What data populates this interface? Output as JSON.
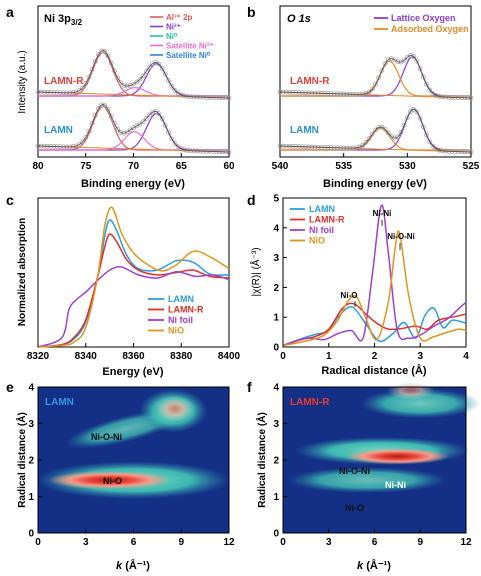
{
  "panels": {
    "a": {
      "letter": "a",
      "title_main": "Ni 3p",
      "title_sub": "3/2",
      "xlabel": "Binding energy (eV)",
      "ylabel": "Intensity (a.u.)",
      "xticks": [
        "80",
        "75",
        "70",
        "65",
        "60"
      ],
      "legend": [
        {
          "label": "Al³⁺ 2p",
          "color": "#e5595a"
        },
        {
          "label": "Ni²⁺",
          "color": "#8a3cd6"
        },
        {
          "label": "Ni⁰",
          "color": "#29c2a4"
        },
        {
          "label": "Satellite Ni²⁺",
          "color": "#e86fcf"
        },
        {
          "label": "Satellite Ni⁰",
          "color": "#2f86d8"
        }
      ],
      "samples": [
        {
          "label": "LAMN-R",
          "color": "#e0413b"
        },
        {
          "label": "LAMN",
          "color": "#2a8fd6"
        }
      ]
    },
    "b": {
      "letter": "b",
      "title": "O 1s",
      "xlabel": "Binding energy (eV)",
      "xticks": [
        "540",
        "535",
        "530",
        "525"
      ],
      "legend": [
        {
          "label": "Lattice Oxygen",
          "color": "#8a3cd6"
        },
        {
          "label": "Adsorbed Oxygen",
          "color": "#e58a2a"
        }
      ],
      "samples": [
        {
          "label": "LAMN-R",
          "color": "#e0413b"
        },
        {
          "label": "LAMN",
          "color": "#2a8fd6"
        }
      ]
    },
    "c": {
      "letter": "c",
      "xlabel": "Energy (eV)",
      "ylabel": "Normalized absorption",
      "xticks": [
        "8320",
        "8340",
        "8360",
        "8380",
        "8400"
      ],
      "legend": [
        {
          "label": "LAMN",
          "color": "#2a9ee0"
        },
        {
          "label": "LAMN-R",
          "color": "#e0302a"
        },
        {
          "label": "Ni foil",
          "color": "#a040d0"
        },
        {
          "label": "NiO",
          "color": "#e0961e"
        }
      ]
    },
    "d": {
      "letter": "d",
      "xlabel": "Radical distance (Å)",
      "ylabel": "|χ(R)| (Å⁻³)",
      "xticks": [
        "0",
        "1",
        "2",
        "3",
        "4"
      ],
      "yticks": [
        "0",
        "1",
        "2",
        "3",
        "4",
        "5"
      ],
      "legend": [
        {
          "label": "LAMN",
          "color": "#2a9ee0"
        },
        {
          "label": "LAMN-R",
          "color": "#e0302a"
        },
        {
          "label": "Ni foil",
          "color": "#a040d0"
        },
        {
          "label": "NiO",
          "color": "#e0961e"
        }
      ],
      "annotations": [
        "Ni-Ni",
        "Ni-O-Ni",
        "Ni-O"
      ]
    },
    "e": {
      "letter": "e",
      "sample": "LAMN",
      "xlabel_k": "k",
      "xlabel_unit": " (Å⁻¹)",
      "ylabel": "Radical distance (Å)",
      "xticks": [
        "0",
        "3",
        "6",
        "9",
        "12"
      ],
      "yticks": [
        "0",
        "1",
        "2",
        "3",
        "4"
      ],
      "annotations": [
        "Ni-O-Ni",
        "Ni-O"
      ]
    },
    "f": {
      "letter": "f",
      "sample": "LAMN-R",
      "xlabel_k": "k",
      "xlabel_unit": " (Å⁻¹)",
      "ylabel": "Radical distance (Å)",
      "xticks": [
        "0",
        "3",
        "6",
        "9",
        "12"
      ],
      "yticks": [
        "0",
        "1",
        "2",
        "3",
        "4"
      ],
      "annotations": [
        "Ni-O-Ni",
        "Ni-Ni",
        "Ni-O"
      ]
    }
  },
  "chart_data": [
    {
      "panel": "a",
      "type": "line",
      "xlim": [
        80,
        60
      ],
      "x_reversed": true,
      "series": [
        {
          "name": "LAMN-R",
          "peaks": [
            {
              "component": "Al³⁺ 2p",
              "center": 73.2,
              "height": 0.62
            },
            {
              "component": "Ni²⁺",
              "center": 67.6,
              "height": 0.46
            },
            {
              "component": "Satellite Ni²⁺",
              "center": 69.8,
              "height": 0.12
            }
          ]
        },
        {
          "name": "LAMN",
          "peaks": [
            {
              "component": "Al³⁺ 2p",
              "center": 73.2,
              "height": 0.62
            },
            {
              "component": "Ni²⁺",
              "center": 67.6,
              "height": 0.52
            },
            {
              "component": "Satellite Ni²⁺",
              "center": 69.9,
              "height": 0.26
            }
          ]
        }
      ]
    },
    {
      "panel": "b",
      "type": "line",
      "xlim": [
        540,
        525
      ],
      "x_reversed": true,
      "series": [
        {
          "name": "LAMN-R",
          "peaks": [
            {
              "component": "Lattice Oxygen",
              "center": 529.6,
              "height": 0.65
            },
            {
              "component": "Adsorbed Oxygen",
              "center": 531.4,
              "height": 0.58
            }
          ]
        },
        {
          "name": "LAMN",
          "peaks": [
            {
              "component": "Lattice Oxygen",
              "center": 529.5,
              "height": 0.68
            },
            {
              "component": "Adsorbed Oxygen",
              "center": 532.1,
              "height": 0.37
            }
          ]
        }
      ]
    },
    {
      "panel": "c",
      "type": "line",
      "xlim": [
        8320,
        8400
      ],
      "ylim": [
        0,
        1.9
      ],
      "series": [
        {
          "name": "LAMN",
          "x": [
            8320,
            8330,
            8335,
            8340,
            8345,
            8348,
            8350,
            8353,
            8357,
            8362,
            8370,
            8378,
            8385,
            8392,
            8400
          ],
          "y": [
            0.0,
            0.03,
            0.1,
            0.32,
            0.9,
            1.42,
            1.62,
            1.48,
            1.18,
            1.0,
            0.98,
            1.1,
            1.08,
            0.93,
            0.92
          ]
        },
        {
          "name": "LAMN-R",
          "x": [
            8320,
            8330,
            8335,
            8340,
            8345,
            8348,
            8350,
            8353,
            8357,
            8362,
            8370,
            8378,
            8385,
            8392,
            8400
          ],
          "y": [
            0.0,
            0.03,
            0.12,
            0.35,
            0.9,
            1.28,
            1.44,
            1.34,
            1.12,
            0.98,
            0.92,
            0.95,
            0.98,
            0.9,
            0.88
          ]
        },
        {
          "name": "Ni foil",
          "x": [
            8320,
            8330,
            8333,
            8336,
            8340,
            8345,
            8350,
            8355,
            8362,
            8370,
            8378,
            8386,
            8393,
            8400
          ],
          "y": [
            0.0,
            0.12,
            0.48,
            0.6,
            0.7,
            0.85,
            0.98,
            1.02,
            0.92,
            0.88,
            0.96,
            0.9,
            0.92,
            0.86
          ]
        },
        {
          "name": "NiO",
          "x": [
            8320,
            8330,
            8335,
            8340,
            8345,
            8348,
            8351,
            8355,
            8360,
            8366,
            8372,
            8378,
            8385,
            8392,
            8400
          ],
          "y": [
            0.0,
            0.02,
            0.06,
            0.25,
            0.9,
            1.55,
            1.78,
            1.45,
            1.2,
            1.05,
            0.97,
            1.05,
            1.22,
            1.15,
            1.0
          ]
        }
      ]
    },
    {
      "panel": "d",
      "type": "line",
      "xlim": [
        0,
        4
      ],
      "ylim": [
        0,
        5
      ],
      "series": [
        {
          "name": "LAMN",
          "x": [
            0,
            0.4,
            0.7,
            1.0,
            1.2,
            1.5,
            1.8,
            2.1,
            2.4,
            2.65,
            2.9,
            3.1,
            3.3,
            3.5,
            3.7,
            4.0
          ],
          "y": [
            0.05,
            0.28,
            0.42,
            0.55,
            1.0,
            1.35,
            0.8,
            0.2,
            0.45,
            0.82,
            0.3,
            1.05,
            1.3,
            0.65,
            0.9,
            0.8
          ]
        },
        {
          "name": "LAMN-R",
          "x": [
            0,
            0.4,
            0.7,
            1.0,
            1.3,
            1.55,
            1.85,
            2.05,
            2.3,
            2.6,
            2.9,
            3.15,
            3.4,
            3.7,
            4.0
          ],
          "y": [
            0.05,
            0.25,
            0.35,
            0.6,
            1.3,
            1.45,
            1.05,
            0.8,
            0.6,
            0.62,
            0.7,
            0.6,
            0.9,
            1.0,
            1.1
          ]
        },
        {
          "name": "Ni foil",
          "x": [
            0,
            0.5,
            0.9,
            1.2,
            1.5,
            1.75,
            1.95,
            2.15,
            2.3,
            2.5,
            2.75,
            3.0,
            3.3,
            3.6,
            3.85,
            4.0
          ],
          "y": [
            0.05,
            0.3,
            0.25,
            0.45,
            0.55,
            0.3,
            2.4,
            4.75,
            3.2,
            0.55,
            0.3,
            0.4,
            0.7,
            0.95,
            1.3,
            1.5
          ]
        },
        {
          "name": "NiO",
          "x": [
            0,
            0.5,
            0.9,
            1.2,
            1.4,
            1.6,
            1.8,
            2.05,
            2.3,
            2.45,
            2.55,
            2.75,
            3.0,
            3.3,
            3.6,
            3.85,
            4.0
          ],
          "y": [
            0.05,
            0.2,
            0.4,
            0.9,
            1.5,
            1.7,
            1.0,
            0.25,
            1.5,
            3.3,
            3.8,
            1.7,
            0.3,
            0.35,
            0.5,
            0.6,
            0.55
          ]
        }
      ]
    },
    {
      "panel": "e",
      "type": "heatmap",
      "xlim": [
        0,
        12
      ],
      "ylim": [
        0,
        4
      ],
      "features": [
        {
          "k": 4.5,
          "R": 1.45,
          "relative_intensity": 1.0
        },
        {
          "k": 8.6,
          "R": 3.4,
          "relative_intensity": 0.7
        },
        {
          "k": 5.5,
          "R": 2.85,
          "relative_intensity": 0.3
        }
      ]
    },
    {
      "panel": "f",
      "type": "heatmap",
      "xlim": [
        0,
        12
      ],
      "ylim": [
        0,
        4
      ],
      "features": [
        {
          "k": 7.5,
          "R": 2.1,
          "relative_intensity": 1.0
        },
        {
          "k": 8.4,
          "R": 3.9,
          "relative_intensity": 0.6
        },
        {
          "k": 4.0,
          "R": 1.4,
          "relative_intensity": 0.4
        },
        {
          "k": 5.0,
          "R": 2.4,
          "relative_intensity": 0.3
        }
      ]
    }
  ]
}
